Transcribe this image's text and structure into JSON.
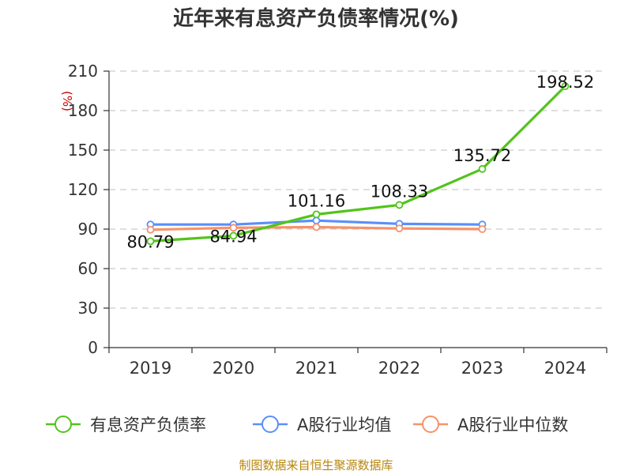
{
  "chart_data": {
    "type": "line",
    "title": "近年来有息资产负债率情况(%)",
    "ylabel": "(%)",
    "xlabel": "",
    "ylim": [
      0,
      210
    ],
    "yticks": [
      0,
      30,
      60,
      90,
      120,
      150,
      180,
      210
    ],
    "categories": [
      "2019",
      "2020",
      "2021",
      "2022",
      "2023",
      "2024"
    ],
    "grid": true,
    "legend_position": "bottom",
    "series": [
      {
        "name": "有息资产负债率",
        "color": "#52c41a",
        "values": [
          80.79,
          84.94,
          101.16,
          108.33,
          135.72,
          198.52
        ],
        "labels": [
          "80.79",
          "84.94",
          "101.16",
          "108.33",
          "135.72",
          "198.52"
        ]
      },
      {
        "name": "A股行业均值",
        "color": "#5b8ff9",
        "values": [
          93.5,
          93.5,
          96.5,
          94.0,
          93.5,
          null
        ]
      },
      {
        "name": "A股行业中位数",
        "color": "#f6926b",
        "values": [
          89.5,
          91.0,
          91.5,
          90.5,
          90.0,
          null
        ]
      }
    ],
    "source": "制图数据来自恒生聚源数据库"
  }
}
